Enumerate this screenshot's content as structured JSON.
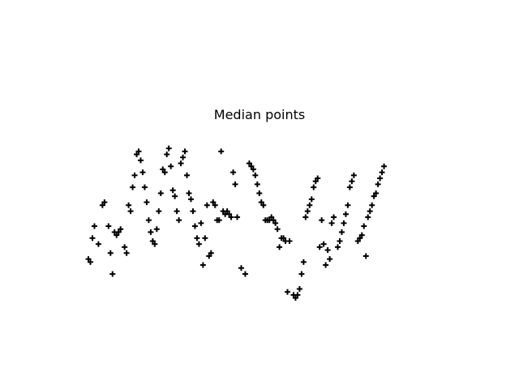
{
  "chart_data": {
    "type": "scatter",
    "title": "Median points",
    "xlabel": "",
    "ylabel": "",
    "axes_visible": false,
    "grid": false,
    "marker": "+",
    "marker_color": "#000000",
    "xlim": [
      0,
      100
    ],
    "ylim": [
      -2.5,
      2.5
    ],
    "series": [
      {
        "points": [
          [
            0.0,
            -0.3
          ],
          [
            0.5,
            -0.35
          ],
          [
            1.0,
            0.05
          ],
          [
            1.5,
            0.25
          ],
          [
            2.5,
            -0.05
          ],
          [
            3.5,
            0.6
          ],
          [
            4.0,
            0.65
          ],
          [
            5.0,
            0.25
          ],
          [
            5.5,
            -0.2
          ],
          [
            6.0,
            -0.55
          ],
          [
            6.5,
            0.15
          ],
          [
            7.0,
            0.1
          ],
          [
            7.5,
            0.15
          ],
          [
            8.0,
            0.2
          ],
          [
            9.0,
            -0.1
          ],
          [
            9.5,
            -0.2
          ],
          [
            10.0,
            0.6
          ],
          [
            10.5,
            0.5
          ],
          [
            11.0,
            0.9
          ],
          [
            11.5,
            1.1
          ],
          [
            12.0,
            1.45
          ],
          [
            12.5,
            1.5
          ],
          [
            13.0,
            1.35
          ],
          [
            13.5,
            1.15
          ],
          [
            14.0,
            0.9
          ],
          [
            14.5,
            0.65
          ],
          [
            15.0,
            0.35
          ],
          [
            15.5,
            0.15
          ],
          [
            16.0,
            0.0
          ],
          [
            16.5,
            -0.05
          ],
          [
            17.0,
            0.2
          ],
          [
            17.5,
            0.5
          ],
          [
            18.0,
            0.8
          ],
          [
            18.5,
            1.2
          ],
          [
            19.0,
            1.15
          ],
          [
            19.5,
            1.45
          ],
          [
            20.0,
            1.55
          ],
          [
            20.5,
            1.25
          ],
          [
            21.0,
            0.85
          ],
          [
            21.5,
            0.75
          ],
          [
            22.0,
            0.5
          ],
          [
            22.5,
            0.35
          ],
          [
            23.0,
            1.3
          ],
          [
            23.5,
            1.4
          ],
          [
            24.0,
            1.5
          ],
          [
            24.5,
            1.1
          ],
          [
            25.0,
            0.8
          ],
          [
            25.5,
            0.7
          ],
          [
            26.0,
            0.5
          ],
          [
            26.5,
            0.25
          ],
          [
            27.0,
            0.05
          ],
          [
            27.5,
            -0.05
          ],
          [
            28.0,
            0.3
          ],
          [
            28.5,
            -0.4
          ],
          [
            29.0,
            0.05
          ],
          [
            29.5,
            0.6
          ],
          [
            30.0,
            -0.25
          ],
          [
            30.5,
            -0.2
          ],
          [
            31.0,
            0.65
          ],
          [
            31.5,
            0.6
          ],
          [
            32.0,
            0.35
          ],
          [
            32.5,
            0.35
          ],
          [
            33.0,
            1.5
          ],
          [
            33.5,
            0.5
          ],
          [
            34.0,
            0.45
          ],
          [
            34.5,
            0.5
          ],
          [
            35.0,
            0.45
          ],
          [
            35.5,
            0.4
          ],
          [
            36.0,
            1.15
          ],
          [
            36.5,
            0.95
          ],
          [
            37.0,
            0.4
          ],
          [
            38.0,
            -0.45
          ],
          [
            39.0,
            -0.55
          ],
          [
            40.0,
            1.3
          ],
          [
            40.5,
            1.25
          ],
          [
            41.0,
            1.2
          ],
          [
            41.5,
            1.1
          ],
          [
            42.0,
            0.95
          ],
          [
            42.5,
            0.8
          ],
          [
            43.0,
            0.65
          ],
          [
            43.5,
            0.6
          ],
          [
            44.0,
            0.35
          ],
          [
            44.5,
            0.35
          ],
          [
            45.0,
            0.35
          ],
          [
            45.5,
            0.4
          ],
          [
            46.0,
            0.35
          ],
          [
            46.5,
            0.3
          ],
          [
            47.0,
            0.2
          ],
          [
            47.5,
            -0.1
          ],
          [
            48.0,
            0.05
          ],
          [
            48.5,
            0.05
          ],
          [
            49.0,
            0.0
          ],
          [
            49.5,
            -0.85
          ],
          [
            50.0,
            0.0
          ],
          [
            51.0,
            -0.9
          ],
          [
            51.5,
            -0.95
          ],
          [
            52.0,
            -0.9
          ],
          [
            52.5,
            -0.8
          ],
          [
            53.0,
            -0.55
          ],
          [
            53.5,
            -0.35
          ],
          [
            54.0,
            0.4
          ],
          [
            54.5,
            0.5
          ],
          [
            55.0,
            0.6
          ],
          [
            55.5,
            0.7
          ],
          [
            56.0,
            0.9
          ],
          [
            56.5,
            1.0
          ],
          [
            57.0,
            1.05
          ],
          [
            57.5,
            -0.1
          ],
          [
            58.0,
            0.35
          ],
          [
            58.5,
            -0.05
          ],
          [
            59.0,
            -0.4
          ],
          [
            59.5,
            -0.15
          ],
          [
            60.0,
            -0.3
          ],
          [
            60.5,
            0.3
          ],
          [
            61.0,
            0.4
          ],
          [
            62.0,
            -0.1
          ],
          [
            62.5,
            0.0
          ],
          [
            63.0,
            0.15
          ],
          [
            63.5,
            0.3
          ],
          [
            64.0,
            0.45
          ],
          [
            64.5,
            0.6
          ],
          [
            65.0,
            0.9
          ],
          [
            65.5,
            1.0
          ],
          [
            66.0,
            1.1
          ],
          [
            67.0,
            0.0
          ],
          [
            67.5,
            0.05
          ],
          [
            68.0,
            0.1
          ],
          [
            68.5,
            0.25
          ],
          [
            69.0,
            -0.25
          ],
          [
            69.5,
            0.4
          ],
          [
            70.0,
            0.5
          ],
          [
            70.5,
            0.6
          ],
          [
            71.0,
            0.75
          ],
          [
            71.5,
            0.8
          ],
          [
            72.0,
            0.95
          ],
          [
            72.5,
            1.05
          ],
          [
            73.0,
            1.15
          ],
          [
            73.5,
            1.25
          ]
        ]
      }
    ]
  }
}
